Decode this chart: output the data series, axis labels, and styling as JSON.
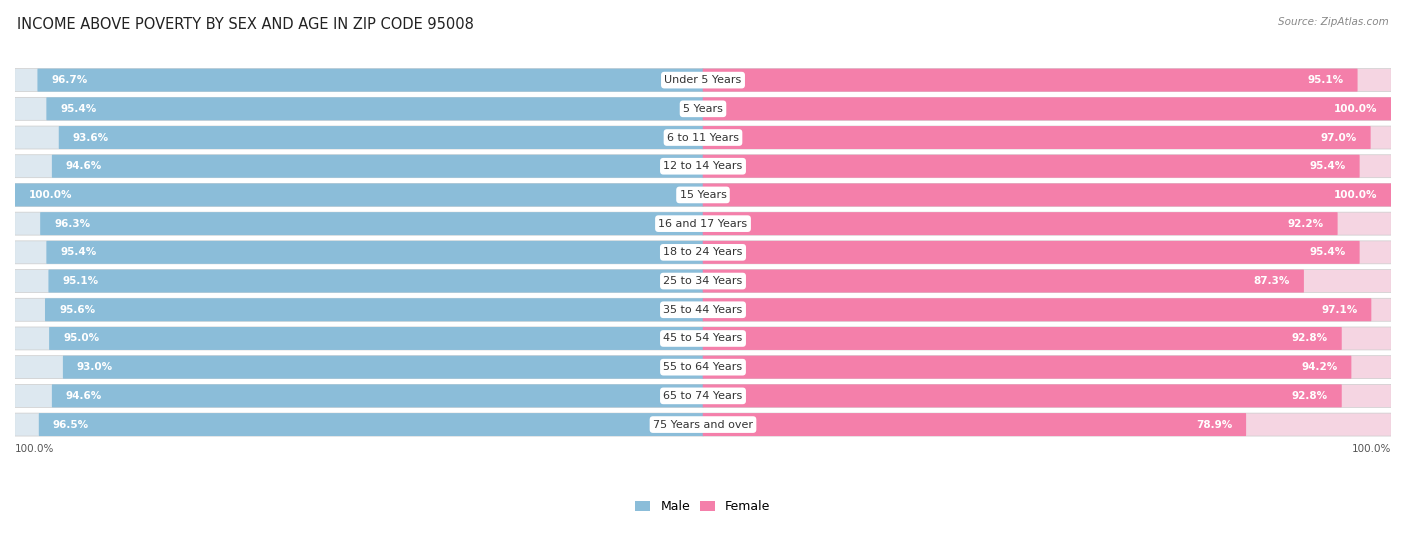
{
  "title": "INCOME ABOVE POVERTY BY SEX AND AGE IN ZIP CODE 95008",
  "source": "Source: ZipAtlas.com",
  "categories": [
    "Under 5 Years",
    "5 Years",
    "6 to 11 Years",
    "12 to 14 Years",
    "15 Years",
    "16 and 17 Years",
    "18 to 24 Years",
    "25 to 34 Years",
    "35 to 44 Years",
    "45 to 54 Years",
    "55 to 64 Years",
    "65 to 74 Years",
    "75 Years and over"
  ],
  "male_values": [
    96.7,
    95.4,
    93.6,
    94.6,
    100.0,
    96.3,
    95.4,
    95.1,
    95.6,
    95.0,
    93.0,
    94.6,
    96.5
  ],
  "female_values": [
    95.1,
    100.0,
    97.0,
    95.4,
    100.0,
    92.2,
    95.4,
    87.3,
    97.1,
    92.8,
    94.2,
    92.8,
    78.9
  ],
  "male_color": "#8bbdd9",
  "female_color": "#f47faa",
  "bg_row_color": "#dde8f0",
  "bg_row_color_right": "#f5d5e2",
  "background_color": "#ffffff",
  "title_fontsize": 10.5,
  "label_fontsize": 8.0,
  "value_fontsize": 7.5,
  "source_fontsize": 7.5,
  "legend_fontsize": 9.0,
  "max_value": 100.0,
  "legend_male": "Male",
  "legend_female": "Female"
}
